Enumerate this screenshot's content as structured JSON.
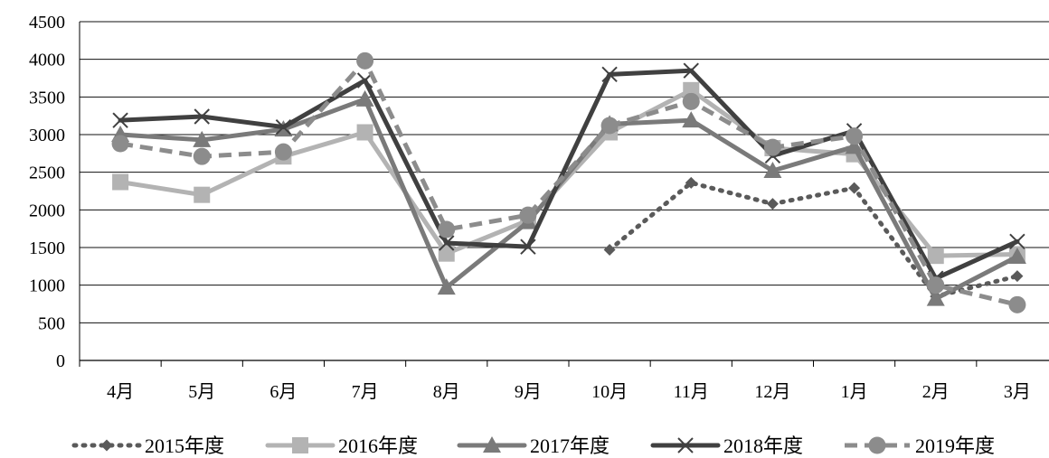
{
  "chart_data": {
    "type": "line",
    "categories": [
      "4月",
      "5月",
      "6月",
      "7月",
      "8月",
      "9月",
      "10月",
      "11月",
      "12月",
      "1月",
      "2月",
      "3月"
    ],
    "ylim": [
      0,
      4500
    ],
    "yticks": [
      0,
      500,
      1000,
      1500,
      2000,
      2500,
      3000,
      3500,
      4000,
      4500
    ],
    "grid": "horizontal",
    "legend": "bottom",
    "series": [
      {
        "name": "2015年度",
        "color": "#5a5a5a",
        "dash": "dotted",
        "marker": "diamond",
        "values": [
          null,
          null,
          null,
          null,
          null,
          null,
          1470,
          2360,
          2080,
          2290,
          850,
          1120
        ]
      },
      {
        "name": "2016年度",
        "color": "#b3b3b3",
        "dash": "solid",
        "marker": "square",
        "values": [
          2370,
          2200,
          2710,
          3030,
          1420,
          1860,
          3030,
          3590,
          2820,
          2740,
          1390,
          1410
        ]
      },
      {
        "name": "2017年度",
        "color": "#7a7a7a",
        "dash": "solid",
        "marker": "triangle",
        "values": [
          3000,
          2930,
          3070,
          3470,
          970,
          1840,
          3140,
          3190,
          2520,
          2840,
          820,
          1380
        ]
      },
      {
        "name": "2018年度",
        "color": "#404040",
        "dash": "solid",
        "marker": "x",
        "values": [
          3190,
          3240,
          3100,
          3720,
          1560,
          1510,
          3800,
          3850,
          2720,
          3050,
          1090,
          1580
        ]
      },
      {
        "name": "2019年度",
        "color": "#8c8c8c",
        "dash": "dashed",
        "marker": "circle",
        "values": [
          2880,
          2710,
          2770,
          3980,
          1740,
          1930,
          3120,
          3440,
          2830,
          2980,
          1000,
          740
        ]
      }
    ]
  }
}
